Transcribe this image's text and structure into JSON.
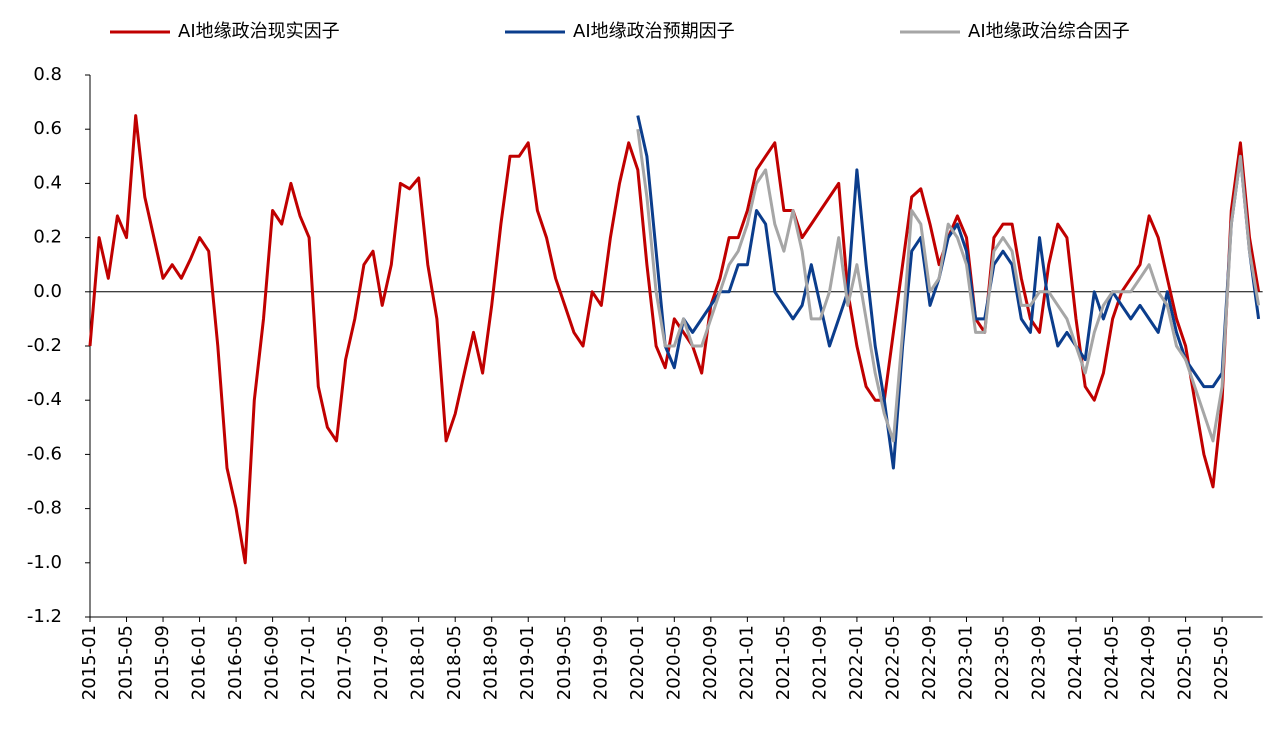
{
  "chart_data": {
    "type": "line",
    "categories": [
      "2015-01",
      null,
      null,
      null,
      "2015-05",
      null,
      null,
      null,
      "2015-09",
      null,
      null,
      null,
      "2016-01",
      null,
      null,
      null,
      "2016-05",
      null,
      null,
      null,
      "2016-09",
      null,
      null,
      null,
      "2017-01",
      null,
      null,
      null,
      "2017-05",
      null,
      null,
      null,
      "2017-09",
      null,
      null,
      null,
      "2018-01",
      null,
      null,
      null,
      "2018-05",
      null,
      null,
      null,
      "2018-09",
      null,
      null,
      null,
      "2019-01",
      null,
      null,
      null,
      "2019-05",
      null,
      null,
      null,
      "2019-09",
      null,
      null,
      null,
      "2020-01",
      null,
      null,
      null,
      "2020-05",
      null,
      null,
      null,
      "2020-09",
      null,
      null,
      null,
      "2021-01",
      null,
      null,
      null,
      "2021-05",
      null,
      null,
      null,
      "2021-09",
      null,
      null,
      null,
      "2022-01",
      null,
      null,
      null,
      "2022-05",
      null,
      null,
      null,
      "2022-09",
      null,
      null,
      null,
      "2023-01",
      null,
      null,
      null,
      "2023-05",
      null,
      null,
      null,
      "2023-09",
      null,
      null,
      null,
      "2024-01",
      null,
      null,
      null,
      "2024-05",
      null,
      null,
      null,
      "2024-09",
      null,
      null,
      null,
      "2025-01",
      null,
      null,
      null,
      "2025-05",
      null,
      null,
      null,
      null
    ],
    "series": [
      {
        "name": "AI地缘政治现实因子",
        "color": "#c00000",
        "values": [
          -0.2,
          0.2,
          0.05,
          0.28,
          0.2,
          0.65,
          0.35,
          0.2,
          0.05,
          0.1,
          0.05,
          0.12,
          0.2,
          0.15,
          -0.2,
          -0.65,
          -0.8,
          -1.0,
          -0.4,
          -0.1,
          0.3,
          0.25,
          0.4,
          0.28,
          0.2,
          -0.35,
          -0.5,
          -0.55,
          -0.25,
          -0.1,
          0.1,
          0.15,
          -0.05,
          0.1,
          0.4,
          0.38,
          0.42,
          0.1,
          -0.1,
          -0.55,
          -0.45,
          -0.3,
          -0.15,
          -0.3,
          -0.05,
          0.25,
          0.5,
          0.5,
          0.55,
          0.3,
          0.2,
          0.05,
          -0.05,
          -0.15,
          -0.2,
          0.0,
          -0.05,
          0.2,
          0.4,
          0.55,
          0.45,
          0.1,
          -0.2,
          -0.28,
          -0.1,
          -0.15,
          -0.2,
          -0.3,
          -0.05,
          0.05,
          0.2,
          0.2,
          0.3,
          0.45,
          0.5,
          0.55,
          0.3,
          0.3,
          0.2,
          0.25,
          0.3,
          0.35,
          0.4,
          0.0,
          -0.2,
          -0.35,
          -0.4,
          -0.4,
          -0.15,
          0.1,
          0.35,
          0.38,
          0.25,
          0.1,
          0.2,
          0.28,
          0.2,
          -0.1,
          -0.15,
          0.2,
          0.25,
          0.25,
          0.05,
          -0.1,
          -0.15,
          0.1,
          0.25,
          0.2,
          -0.1,
          -0.35,
          -0.4,
          -0.3,
          -0.1,
          0.0,
          0.05,
          0.1,
          0.28,
          0.2,
          0.05,
          -0.1,
          -0.2,
          -0.4,
          -0.6,
          -0.72,
          -0.4,
          0.3,
          0.55,
          0.2,
          0.0
        ]
      },
      {
        "name": "AI地缘政治预期因子",
        "color": "#0b3d8c",
        "values": [
          null,
          null,
          null,
          null,
          null,
          null,
          null,
          null,
          null,
          null,
          null,
          null,
          null,
          null,
          null,
          null,
          null,
          null,
          null,
          null,
          null,
          null,
          null,
          null,
          null,
          null,
          null,
          null,
          null,
          null,
          null,
          null,
          null,
          null,
          null,
          null,
          null,
          null,
          null,
          null,
          null,
          null,
          null,
          null,
          null,
          null,
          null,
          null,
          null,
          null,
          null,
          null,
          null,
          null,
          null,
          null,
          null,
          null,
          null,
          null,
          0.65,
          0.5,
          0.15,
          -0.2,
          -0.28,
          -0.1,
          -0.15,
          -0.1,
          -0.05,
          0.0,
          0.0,
          0.1,
          0.1,
          0.3,
          0.25,
          0.0,
          -0.05,
          -0.1,
          -0.05,
          0.1,
          -0.05,
          -0.2,
          -0.1,
          0.0,
          0.45,
          0.1,
          -0.2,
          -0.4,
          -0.65,
          -0.2,
          0.15,
          0.2,
          -0.05,
          0.05,
          0.2,
          0.25,
          0.15,
          -0.1,
          -0.1,
          0.1,
          0.15,
          0.1,
          -0.1,
          -0.15,
          0.2,
          -0.05,
          -0.2,
          -0.15,
          -0.2,
          -0.25,
          0.0,
          -0.1,
          0.0,
          -0.05,
          -0.1,
          -0.05,
          -0.1,
          -0.15,
          0.0,
          -0.15,
          -0.25,
          -0.3,
          -0.35,
          -0.35,
          -0.3,
          0.25,
          0.5,
          0.15,
          -0.1
        ]
      },
      {
        "name": "AI地缘政治综合因子",
        "color": "#a6a6a6",
        "values": [
          null,
          null,
          null,
          null,
          null,
          null,
          null,
          null,
          null,
          null,
          null,
          null,
          null,
          null,
          null,
          null,
          null,
          null,
          null,
          null,
          null,
          null,
          null,
          null,
          null,
          null,
          null,
          null,
          null,
          null,
          null,
          null,
          null,
          null,
          null,
          null,
          null,
          null,
          null,
          null,
          null,
          null,
          null,
          null,
          null,
          null,
          null,
          null,
          null,
          null,
          null,
          null,
          null,
          null,
          null,
          null,
          null,
          null,
          null,
          null,
          0.6,
          0.35,
          0.0,
          -0.2,
          -0.2,
          -0.1,
          -0.2,
          -0.2,
          -0.1,
          0.0,
          0.1,
          0.15,
          0.25,
          0.4,
          0.45,
          0.25,
          0.15,
          0.3,
          0.15,
          -0.1,
          -0.1,
          0.0,
          0.2,
          -0.05,
          0.1,
          -0.1,
          -0.3,
          -0.45,
          -0.55,
          -0.15,
          0.3,
          0.25,
          0.0,
          0.05,
          0.25,
          0.2,
          0.1,
          -0.15,
          -0.15,
          0.15,
          0.2,
          0.15,
          -0.05,
          -0.05,
          0.0,
          0.0,
          -0.05,
          -0.1,
          -0.2,
          -0.3,
          -0.15,
          -0.05,
          0.0,
          0.0,
          0.0,
          0.05,
          0.1,
          0.0,
          -0.05,
          -0.2,
          -0.25,
          -0.35,
          -0.45,
          -0.55,
          -0.35,
          0.25,
          0.5,
          0.15,
          -0.05
        ]
      }
    ],
    "ylim": [
      -1.2,
      0.8
    ],
    "yticks": [
      0.8,
      0.6,
      0.4,
      0.2,
      {
        "value": 0,
        "label": "0.0"
      },
      -0.2,
      -0.4,
      -0.6,
      -0.8,
      {
        "value": -1,
        "label": "-1.0"
      },
      -1.2
    ],
    "legend": "top"
  }
}
